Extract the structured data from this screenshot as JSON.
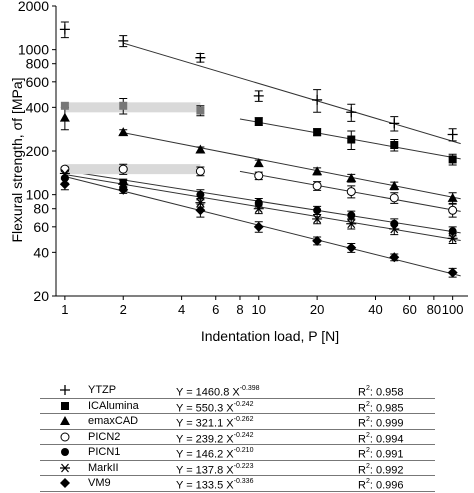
{
  "chart_data": {
    "type": "scatter",
    "xscale": "log",
    "yscale": "log",
    "xlabel": "Indentation load, P [N]",
    "ylabel": "Flexural strength, σf [MPa]",
    "xlim": [
      0.9,
      120
    ],
    "ylim": [
      20,
      2000
    ],
    "x_ticks": [
      1,
      2,
      4,
      6,
      8,
      10,
      20,
      40,
      60,
      80,
      100
    ],
    "x_tick_labels": [
      "1",
      "2",
      "4",
      "6",
      "8",
      "10",
      "20",
      "40",
      "60",
      "80",
      "100"
    ],
    "y_ticks": [
      20,
      40,
      60,
      80,
      100,
      200,
      400,
      600,
      800,
      1000,
      2000
    ],
    "y_tick_labels": [
      "20",
      "40",
      "60",
      "80",
      "100",
      "200",
      "400",
      "600",
      "800",
      "1000",
      "2000"
    ],
    "reference_bands": [
      {
        "y": 400,
        "x_from": 1,
        "x_to": 5
      },
      {
        "y": 150,
        "x_from": 1,
        "x_to": 5
      }
    ],
    "series": [
      {
        "name": "YTZP",
        "marker": "plus",
        "equation": "Y = 1460.8 X",
        "exponent": "-0.398",
        "r2": "0.958",
        "coef": 1460.8,
        "exp": -0.398,
        "fit_from": 2,
        "points": [
          [
            1,
            1380,
            170
          ],
          [
            2,
            1150,
            100
          ],
          [
            5,
            880,
            60
          ],
          [
            10,
            480,
            40
          ],
          [
            20,
            450,
            80
          ],
          [
            30,
            370,
            50
          ],
          [
            50,
            310,
            35
          ],
          [
            100,
            260,
            25
          ]
        ]
      },
      {
        "name": "ICAlumina",
        "marker": "square",
        "equation": "Y = 550.3 X",
        "exponent": "-0.242",
        "r2": "0.985",
        "coef": 550.3,
        "exp": -0.242,
        "fit_from": 8,
        "points": [
          [
            1,
            410,
            0
          ],
          [
            2,
            410,
            50
          ],
          [
            5,
            380,
            30
          ],
          [
            10,
            320,
            20
          ],
          [
            20,
            270,
            15
          ],
          [
            30,
            240,
            35
          ],
          [
            50,
            220,
            20
          ],
          [
            100,
            175,
            15
          ]
        ]
      },
      {
        "name": "emaxCAD",
        "marker": "triangle",
        "equation": "Y = 321.1 X",
        "exponent": "-0.262",
        "r2": "0.999",
        "coef": 321.1,
        "exp": -0.262,
        "fit_from": 2,
        "points": [
          [
            1,
            340,
            60
          ],
          [
            2,
            270,
            10
          ],
          [
            5,
            205,
            8
          ],
          [
            10,
            165,
            8
          ],
          [
            20,
            145,
            8
          ],
          [
            30,
            130,
            8
          ],
          [
            50,
            115,
            7
          ],
          [
            100,
            95,
            8
          ]
        ]
      },
      {
        "name": "PICN2",
        "marker": "circle-open",
        "equation": "Y = 239.2 X",
        "exponent": "-0.242",
        "r2": "0.994",
        "coef": 239.2,
        "exp": -0.242,
        "fit_from": 8,
        "points": [
          [
            1,
            150,
            5
          ],
          [
            2,
            150,
            12
          ],
          [
            5,
            145,
            10
          ],
          [
            10,
            135,
            8
          ],
          [
            20,
            115,
            8
          ],
          [
            30,
            105,
            10
          ],
          [
            50,
            95,
            8
          ],
          [
            100,
            78,
            8
          ]
        ]
      },
      {
        "name": "PICN1",
        "marker": "circle-filled",
        "equation": "Y = 146.2 X",
        "exponent": "-0.210",
        "r2": "0.991",
        "coef": 146.2,
        "exp": -0.21,
        "fit_from": 1,
        "points": [
          [
            1,
            130,
            10
          ],
          [
            2,
            120,
            8
          ],
          [
            5,
            100,
            8
          ],
          [
            10,
            88,
            6
          ],
          [
            20,
            78,
            5
          ],
          [
            30,
            72,
            5
          ],
          [
            50,
            63,
            5
          ],
          [
            100,
            56,
            4
          ]
        ]
      },
      {
        "name": "MarkII",
        "marker": "asterisk",
        "equation": "Y = 137.8 X",
        "exponent": "-0.223",
        "r2": "0.992",
        "coef": 137.8,
        "exp": -0.223,
        "fit_from": 1,
        "points": [
          [
            1,
            140,
            8
          ],
          [
            2,
            118,
            8
          ],
          [
            5,
            88,
            6
          ],
          [
            10,
            80,
            6
          ],
          [
            20,
            68,
            5
          ],
          [
            30,
            63,
            5
          ],
          [
            50,
            58,
            5
          ],
          [
            100,
            50,
            4
          ]
        ]
      },
      {
        "name": "VM9",
        "marker": "diamond",
        "equation": "Y = 133.5 X",
        "exponent": "-0.336",
        "r2": "0.996",
        "coef": 133.5,
        "exp": -0.336,
        "fit_from": 1,
        "points": [
          [
            1,
            118,
            10
          ],
          [
            2,
            108,
            6
          ],
          [
            5,
            78,
            8
          ],
          [
            10,
            60,
            5
          ],
          [
            20,
            48,
            3
          ],
          [
            30,
            43,
            3
          ],
          [
            50,
            37,
            2
          ],
          [
            100,
            29,
            2
          ]
        ]
      }
    ]
  },
  "legend": {
    "r2_label": "R"
  }
}
